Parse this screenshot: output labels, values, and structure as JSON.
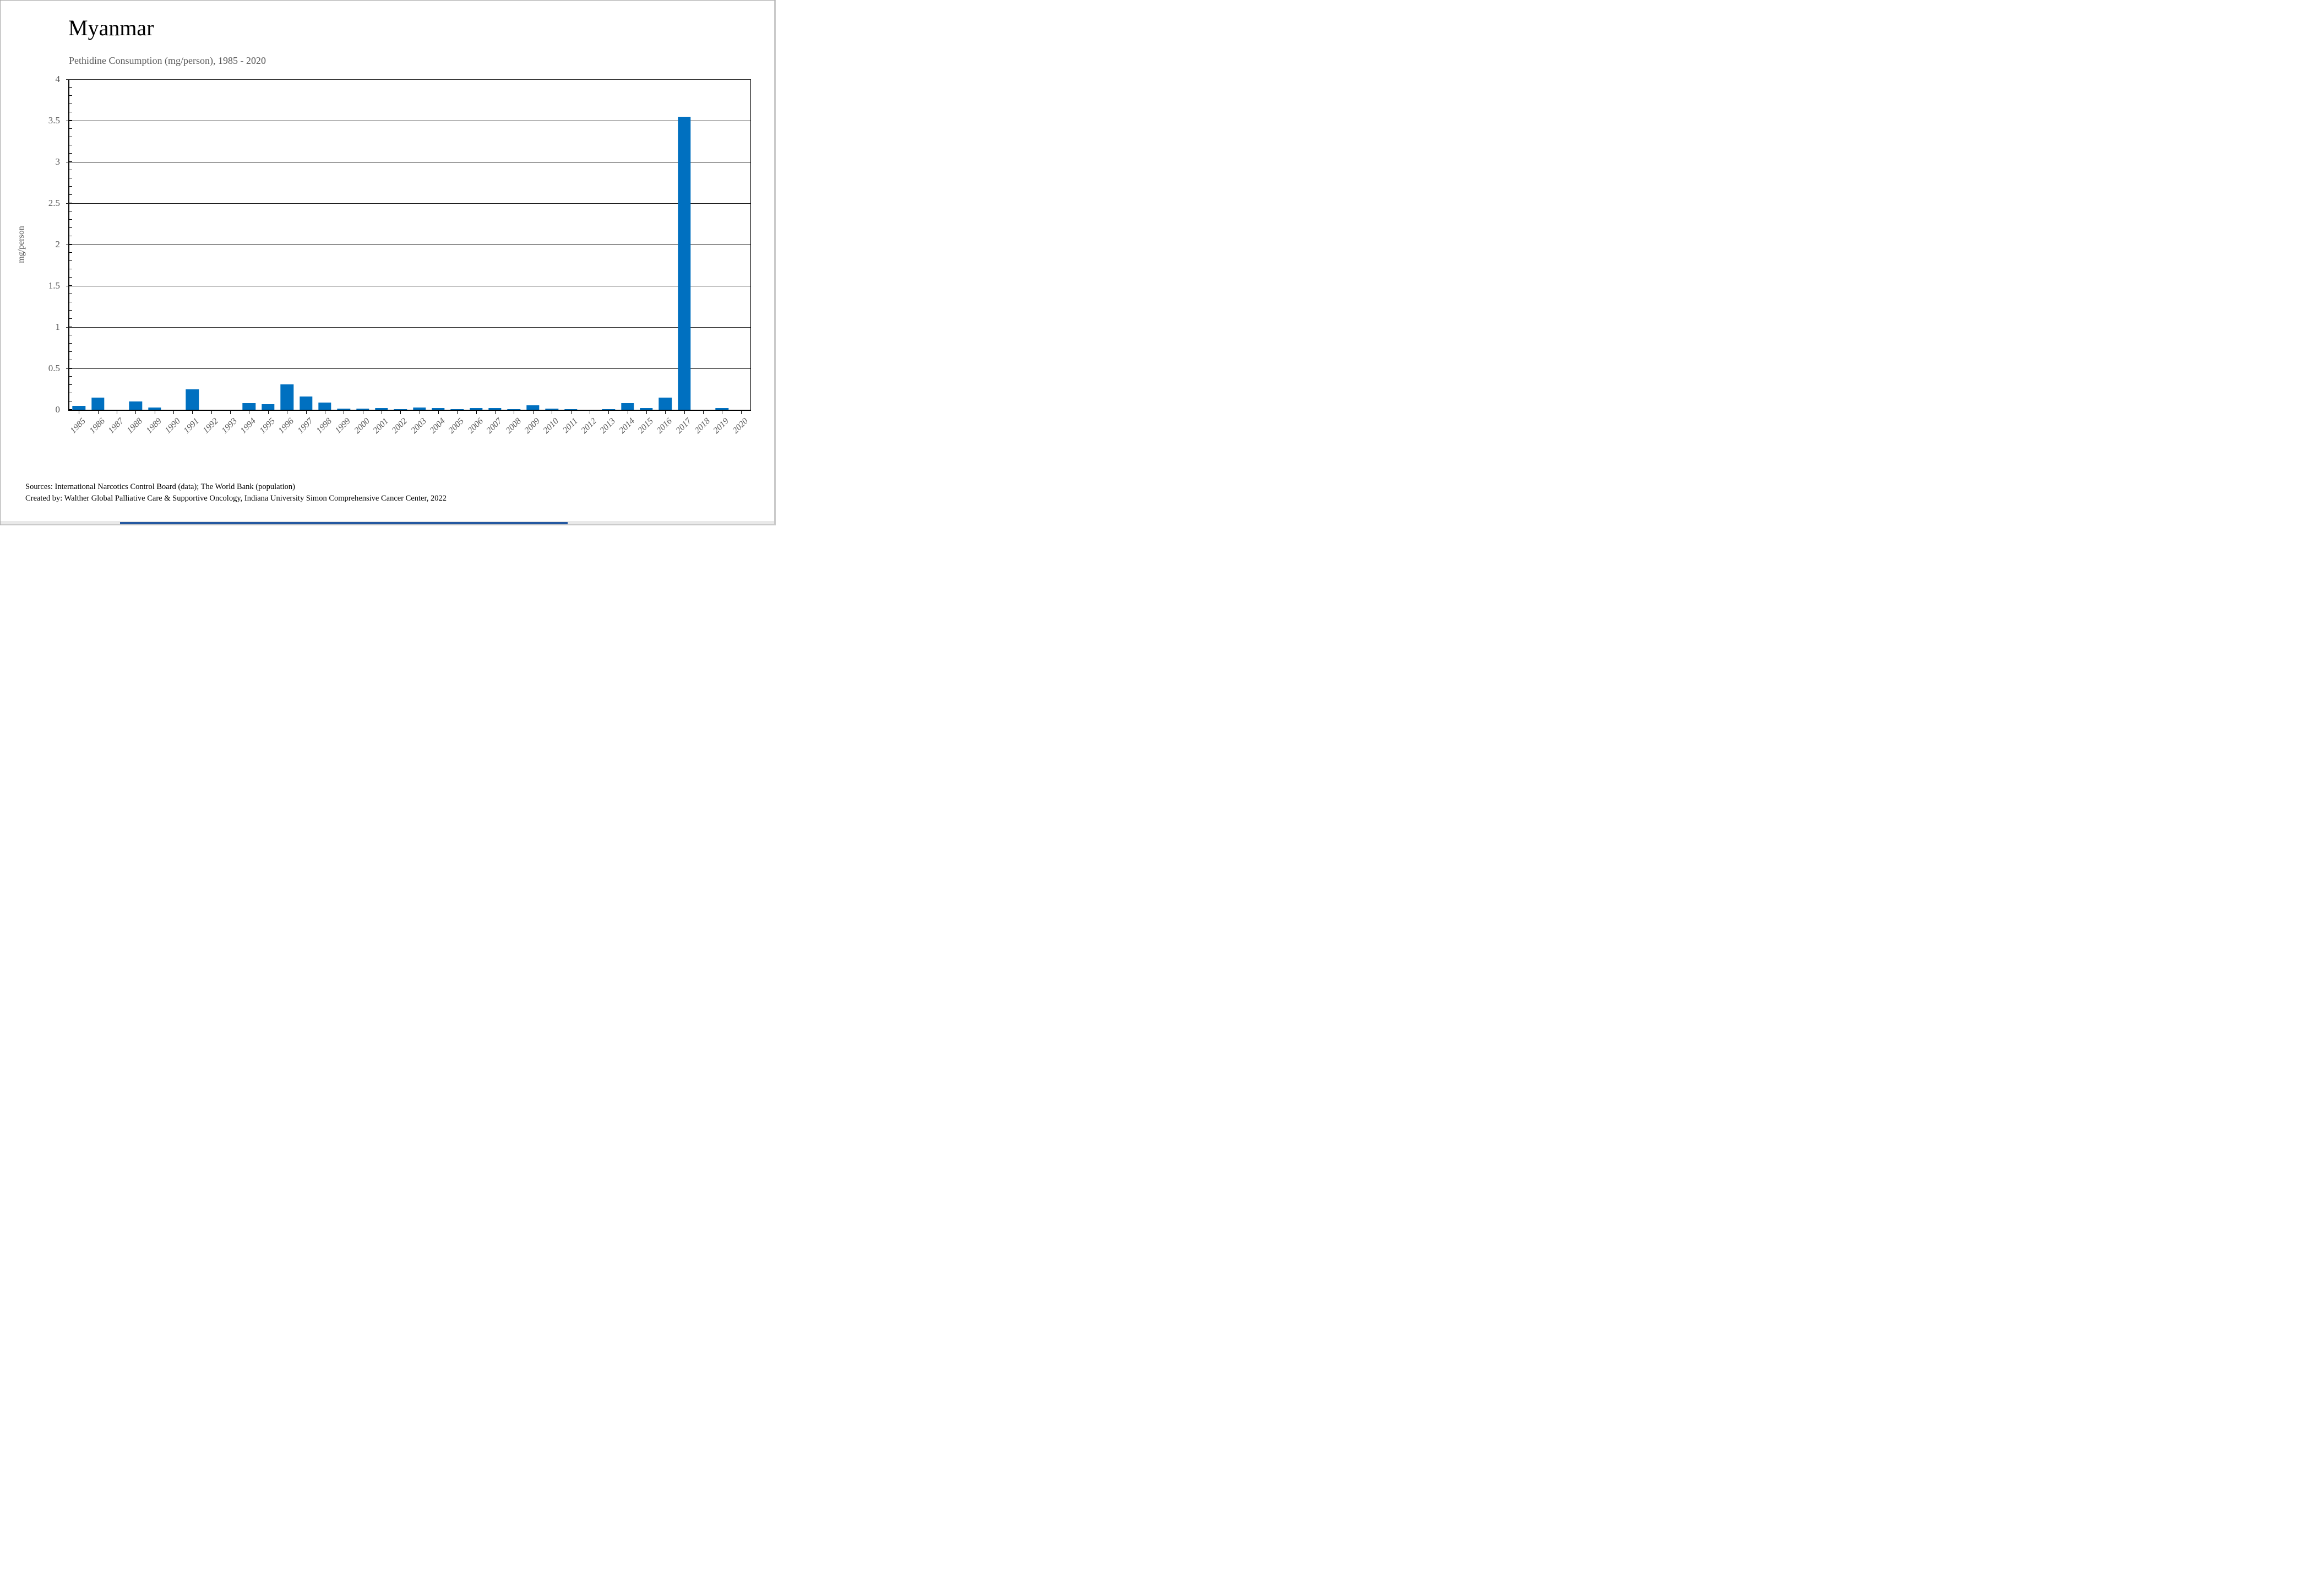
{
  "page": {
    "title": "Myanmar",
    "subtitle": "Pethidine Consumption (mg/person), 1985 - 2020",
    "footer_line1": "Sources: International Narcotics Control Board (data); The World Bank (population)",
    "footer_line2": "Created by: Walther Global Palliative Care & Supportive Oncology, Indiana University Simon Comprehensive Cancer Center, 2022"
  },
  "colors": {
    "bar": "#0070C0",
    "accent_strip": "#2458A0",
    "grid": "#1a1a1a",
    "axis": "#000000",
    "label_gray": "#595959"
  },
  "chart_data": {
    "type": "bar",
    "title": "Myanmar",
    "subtitle": "Pethidine Consumption (mg/person), 1985 - 2020",
    "xlabel": "",
    "ylabel": "mg/person",
    "ylim": [
      0,
      4
    ],
    "ytick_interval": 0.5,
    "yticks": [
      0,
      0.5,
      1,
      1.5,
      2,
      2.5,
      3,
      3.5,
      4
    ],
    "minor_tick_interval": 0.1,
    "grid": true,
    "legend": false,
    "categories": [
      1985,
      1986,
      1987,
      1988,
      1989,
      1990,
      1991,
      1992,
      1993,
      1994,
      1995,
      1996,
      1997,
      1998,
      1999,
      2000,
      2001,
      2002,
      2003,
      2004,
      2005,
      2006,
      2007,
      2008,
      2009,
      2010,
      2011,
      2012,
      2013,
      2014,
      2015,
      2016,
      2017,
      2018,
      2019,
      2020
    ],
    "values": [
      0.05,
      0.15,
      0,
      0.1,
      0.03,
      0,
      0.25,
      0,
      0,
      0.08,
      0.07,
      0.31,
      0.16,
      0.09,
      0.015,
      0.015,
      0.02,
      0.005,
      0.03,
      0.02,
      0.01,
      0.02,
      0.02,
      0.01,
      0.055,
      0.012,
      0.006,
      0,
      0.005,
      0.08,
      0.02,
      0.15,
      3.55,
      0,
      0.02,
      0
    ]
  }
}
